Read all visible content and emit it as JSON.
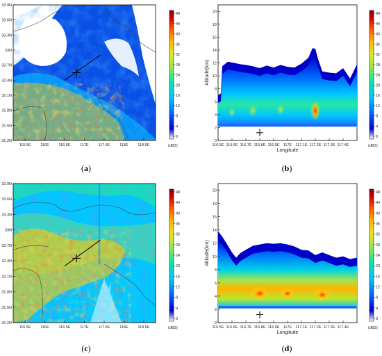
{
  "chart_data": [
    {
      "type": "heatmap",
      "panel": "(a)",
      "caption_letter": "a",
      "x_ticks": [
        "115.5E",
        "116E",
        "116.5E",
        "117E",
        "117.5E",
        "118E",
        "118.5E"
      ],
      "y_ticks": [
        "31.2N",
        "31.5N",
        "31.8N",
        "32.1N",
        "32.4N",
        "32.7N",
        "33N",
        "33.3N",
        "33.6N",
        "33.9N"
      ],
      "xlim": [
        115.2,
        118.8
      ],
      "ylim": [
        31.2,
        33.9
      ],
      "cross_section_line": {
        "start": [
          116.5,
          32.4
        ],
        "end": [
          117.4,
          32.9
        ]
      },
      "marker": [
        116.8,
        32.55
      ],
      "colorbar": {
        "ticks": [
          "0",
          "4",
          "8",
          "12",
          "16",
          "20",
          "24",
          "28",
          "32",
          "36",
          "40",
          "44",
          "48"
        ],
        "unit": "(dBZ)"
      }
    },
    {
      "type": "heatmap",
      "panel": "(b)",
      "caption_letter": "b",
      "x_ticks": [
        "116.5E",
        "116.6E",
        "116.7E",
        "116.8E",
        "116.9E",
        "117E",
        "117.1E",
        "117.2E",
        "117.3E",
        "117.4E"
      ],
      "y_ticks": [
        "0",
        "2",
        "4",
        "6",
        "8",
        "10",
        "12",
        "14",
        "16",
        "18",
        "20"
      ],
      "xlabel": "Longitude",
      "ylabel": "Altitude(km)",
      "xlim": [
        116.5,
        117.5
      ],
      "ylim": [
        0,
        21
      ],
      "echo_top": {
        "x": [
          116.5,
          116.52,
          116.53,
          116.57,
          116.62,
          116.66,
          116.7,
          116.75,
          116.8,
          116.85,
          116.9,
          116.95,
          117.0,
          117.05,
          117.1,
          117.15,
          117.18,
          117.2,
          117.22,
          117.25,
          117.3,
          117.35,
          117.4,
          117.45,
          117.5
        ],
        "top": [
          7,
          7.3,
          11.5,
          12.2,
          12.0,
          11.8,
          11.7,
          11.5,
          11.2,
          11.6,
          11.3,
          11.7,
          11.4,
          11.3,
          11.9,
          12.8,
          14.3,
          14.2,
          12.6,
          10.7,
          10.5,
          10.4,
          11.2,
          9.6,
          11.8
        ]
      },
      "echo_base_km": 2.3,
      "marker": [
        116.8,
        1.2
      ],
      "colorbar": {
        "ticks": [
          "0",
          "4",
          "8",
          "12",
          "16",
          "20",
          "24",
          "28",
          "32",
          "36",
          "40",
          "44",
          "48"
        ],
        "unit": "(dBZ)"
      }
    },
    {
      "type": "heatmap",
      "panel": "(c)",
      "caption_letter": "c",
      "x_ticks": [
        "115.5E",
        "116E",
        "116.5E",
        "117E",
        "117.5E",
        "118E",
        "118.5E"
      ],
      "y_ticks": [
        "31.2N",
        "31.5N",
        "31.8N",
        "32.1N",
        "32.4N",
        "32.7N",
        "33N",
        "33.3N",
        "33.6N",
        "33.9N"
      ],
      "xlim": [
        115.2,
        118.8
      ],
      "ylim": [
        31.2,
        33.9
      ],
      "cross_section_line": {
        "start": [
          116.5,
          32.3
        ],
        "end": [
          117.4,
          32.8
        ]
      },
      "marker": [
        116.8,
        32.45
      ],
      "colorbar": {
        "ticks": [
          "0",
          "4",
          "8",
          "12",
          "16",
          "20",
          "24",
          "28",
          "32",
          "36",
          "40",
          "44",
          "48"
        ],
        "unit": "(dBZ)"
      }
    },
    {
      "type": "heatmap",
      "panel": "(d)",
      "caption_letter": "d",
      "x_ticks": [
        "116.5E",
        "116.6E",
        "116.7E",
        "116.8E",
        "116.9E",
        "117E",
        "117.1E",
        "117.2E",
        "117.3E",
        "117.4E"
      ],
      "y_ticks": [
        "0",
        "2",
        "4",
        "6",
        "8",
        "10",
        "12",
        "14",
        "16",
        "18",
        "20"
      ],
      "xlabel": "Longitude",
      "ylabel": "Altitude(km)",
      "xlim": [
        116.5,
        117.5
      ],
      "ylim": [
        0,
        21
      ],
      "echo_top": {
        "x": [
          116.5,
          116.53,
          116.56,
          116.6,
          116.63,
          116.66,
          116.7,
          116.75,
          116.8,
          116.85,
          116.9,
          116.95,
          117.0,
          117.05,
          117.1,
          117.15,
          117.2,
          117.25,
          117.3,
          117.35,
          117.4,
          117.45,
          117.5
        ],
        "top": [
          13.8,
          13.0,
          12.0,
          10.6,
          9.8,
          10.5,
          11.0,
          11.6,
          11.8,
          12.0,
          11.9,
          12.0,
          11.8,
          11.5,
          11.0,
          10.9,
          10.2,
          10.6,
          10.2,
          9.8,
          10.0,
          9.6,
          9.8
        ]
      },
      "echo_base_km": 2.3,
      "marker": [
        116.8,
        1.2
      ],
      "colorbar": {
        "ticks": [
          "0",
          "4",
          "8",
          "12",
          "16",
          "20",
          "24",
          "28",
          "32",
          "36",
          "40",
          "44",
          "48"
        ],
        "unit": "(dBZ)"
      }
    }
  ],
  "colors": {
    "scale": [
      "#ffffff",
      "#0000c8",
      "#0050ff",
      "#0096ff",
      "#00c8ff",
      "#00e6c8",
      "#32e68c",
      "#a0e650",
      "#e6e61e",
      "#ffc800",
      "#ff8c00",
      "#ff3200",
      "#d20000",
      "#960000"
    ]
  }
}
